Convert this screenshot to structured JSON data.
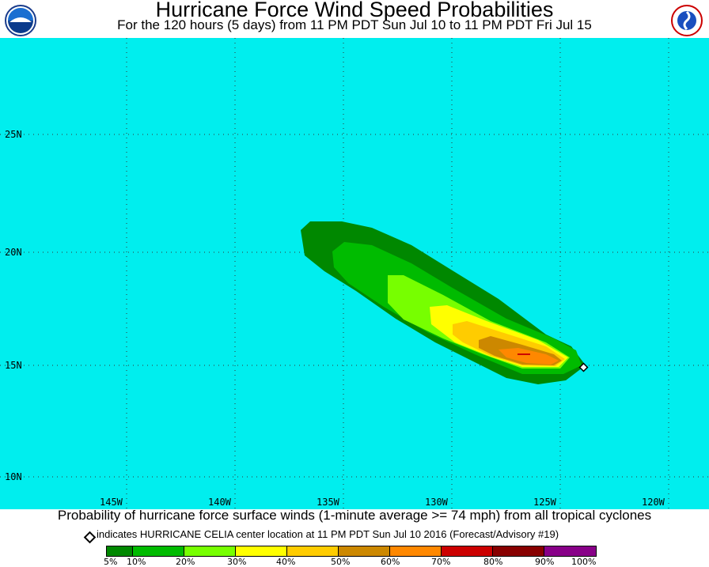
{
  "header": {
    "title": "Hurricane Force Wind Speed Probabilities",
    "subtitle": "For the 120 hours (5 days) from 11 PM PDT Sun Jul 10 to 11 PM PDT Fri Jul 15",
    "logo_left": "NOAA",
    "logo_right": "NATIONAL WEATHER SERVICE"
  },
  "map": {
    "ocean_color": "#00eeee",
    "lat_labels": [
      "25N",
      "20N",
      "15N",
      "10N"
    ],
    "lon_labels": [
      "145W",
      "140W",
      "135W",
      "130W",
      "125W",
      "120W"
    ]
  },
  "caption": "Probability of hurricane force surface winds (1-minute average >= 74 mph) from all tropical cyclones",
  "advisory": "indicates HURRICANE CELIA center location at 11 PM PDT Sun Jul 10 2016 (Forecast/Advisory #19)",
  "legend": {
    "ticks": [
      "5%",
      "10%",
      "20%",
      "30%",
      "40%",
      "50%",
      "60%",
      "70%",
      "80%",
      "90%",
      "100%"
    ],
    "colors": [
      "#008800",
      "#00bb00",
      "#77ff00",
      "#ffff00",
      "#ffcc00",
      "#cc8800",
      "#ff8800",
      "#cc0000",
      "#880000",
      "#880088"
    ]
  }
}
